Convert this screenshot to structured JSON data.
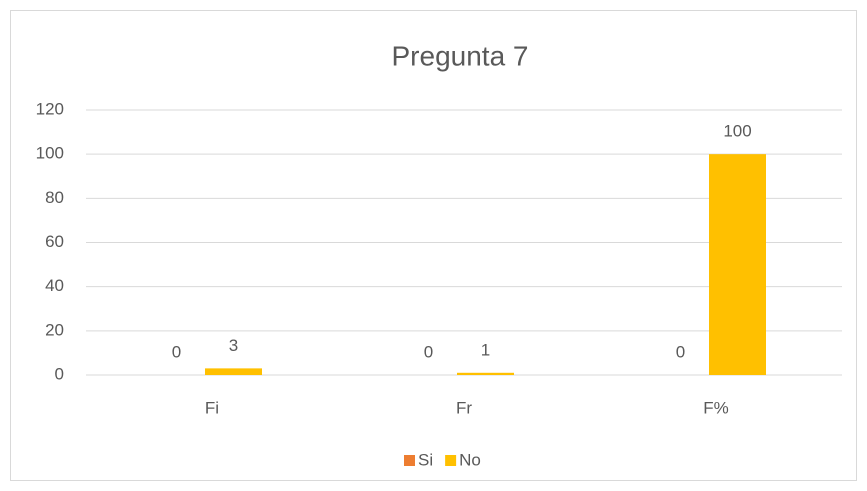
{
  "chart_data": {
    "type": "bar",
    "title": "Pregunta 7",
    "categories": [
      "Fi",
      "Fr",
      "F%"
    ],
    "series": [
      {
        "name": "Si",
        "color": "#ed7d31",
        "values": [
          0,
          0,
          0
        ]
      },
      {
        "name": "No",
        "color": "#ffc000",
        "values": [
          3,
          1,
          100
        ]
      }
    ],
    "ylim": [
      0,
      120
    ],
    "yticks": [
      0,
      20,
      40,
      60,
      80,
      100,
      120
    ],
    "grid": true,
    "legend": "bottom"
  }
}
